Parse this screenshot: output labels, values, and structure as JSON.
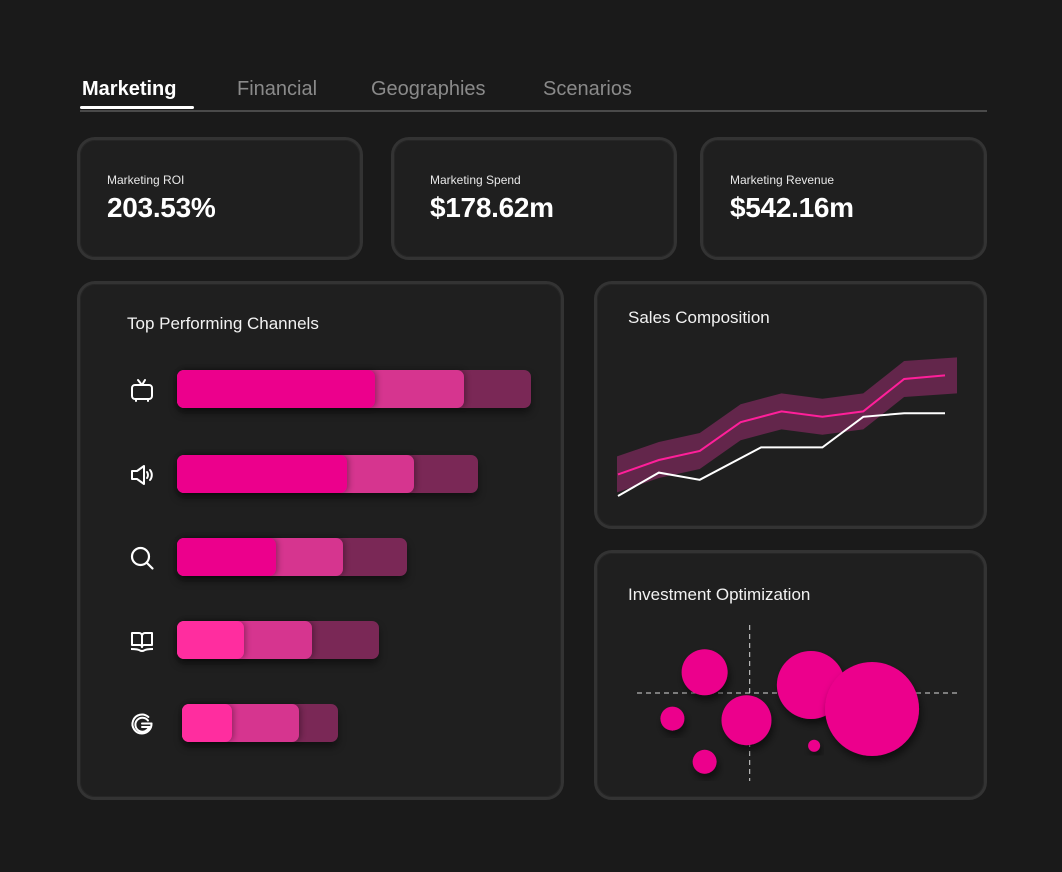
{
  "tabs": [
    {
      "label": "Marketing",
      "active": true
    },
    {
      "label": "Financial",
      "active": false
    },
    {
      "label": "Geographies",
      "active": false
    },
    {
      "label": "Scenarios",
      "active": false
    }
  ],
  "kpis": [
    {
      "label": "Marketing ROI",
      "value": "203.53%"
    },
    {
      "label": "Marketing Spend",
      "value": "$178.62m"
    },
    {
      "label": "Marketing Revenue",
      "value": "$542.16m"
    }
  ],
  "colors": {
    "accent": "#ec008c",
    "accent_light": "#ff2d9f",
    "segment_mid": "#d6358f",
    "segment_dull": "#7a2856",
    "band": "#63264b",
    "background": "#1a1a1a",
    "card": "#1f1f1f"
  },
  "channels": {
    "title": "Top Performing Channels",
    "items": [
      {
        "icon": "tv-icon",
        "primary_color": "#ec008c",
        "segments": [
          56,
          25,
          19
        ]
      },
      {
        "icon": "speaker-icon",
        "primary_color": "#ec008c",
        "segments": [
          48,
          19,
          18
        ]
      },
      {
        "icon": "search-icon",
        "primary_color": "#ec008c",
        "segments": [
          28,
          19,
          18
        ]
      },
      {
        "icon": "book-icon",
        "primary_color": "#ff2d9f",
        "segments": [
          19,
          19,
          19
        ]
      },
      {
        "icon": "google-icon",
        "primary_color": "#ff2d9f",
        "segments": [
          14,
          19,
          11
        ]
      }
    ]
  },
  "chart_data": [
    {
      "type": "line",
      "title": "Sales Composition",
      "xlabel": "",
      "ylabel": "",
      "x": [
        0,
        1,
        2,
        3,
        4,
        5,
        6,
        7,
        8
      ],
      "ylim": [
        0,
        100
      ],
      "series": [
        {
          "name": "pink",
          "values": [
            22,
            30,
            35,
            51,
            57,
            54,
            57,
            75,
            77
          ],
          "band": 10,
          "color": "#ff1f9a"
        },
        {
          "name": "white",
          "x": [
            0,
            1,
            2,
            3.5,
            5,
            6,
            7,
            8
          ],
          "values": [
            10,
            23,
            19,
            37,
            37,
            54,
            56,
            56
          ],
          "color": "#ffffff"
        }
      ],
      "grid": false
    },
    {
      "type": "scatter",
      "title": "Investment Optimization",
      "xlabel": "",
      "ylabel": "",
      "xlim": [
        0,
        100
      ],
      "ylim": [
        0,
        100
      ],
      "reference_lines": {
        "x": 35,
        "y": 55
      },
      "points": [
        {
          "x": 21,
          "y": 68,
          "size": 23
        },
        {
          "x": 11,
          "y": 39,
          "size": 12
        },
        {
          "x": 34,
          "y": 38,
          "size": 25
        },
        {
          "x": 21,
          "y": 12,
          "size": 12
        },
        {
          "x": 55,
          "y": 22,
          "size": 6
        },
        {
          "x": 54,
          "y": 60,
          "size": 34
        },
        {
          "x": 73,
          "y": 45,
          "size": 47
        }
      ]
    }
  ]
}
